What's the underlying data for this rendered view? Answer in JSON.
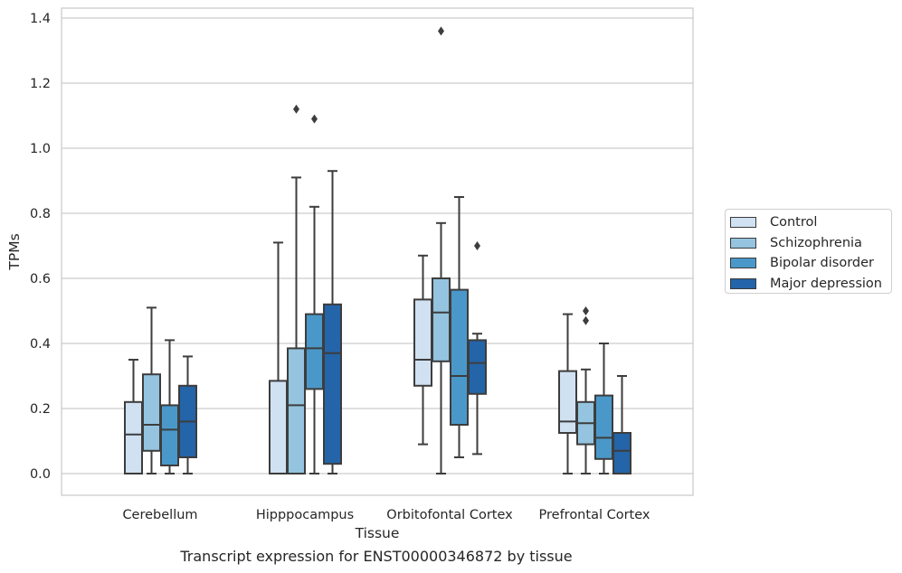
{
  "chart_data": {
    "type": "box",
    "title": "Transcript expression for ENST00000346872 by tissue",
    "xlabel": "Tissue",
    "ylabel": "TPMs",
    "ylim": [
      -0.065,
      1.435
    ],
    "yticks": [
      "0.0",
      "0.2",
      "0.4",
      "0.6",
      "0.8",
      "1.0",
      "1.2",
      "1.4"
    ],
    "categories": [
      "Cerebellum",
      "Hipppocampus",
      "Orbitofontal Cortex",
      "Prefrontal Cortex"
    ],
    "grid": true,
    "legend_position": "right",
    "series": [
      {
        "name": "Control",
        "color": "#d0e1f2",
        "boxes": [
          {
            "whislo": 0.0,
            "q1": 0.0,
            "med": 0.12,
            "q3": 0.22,
            "whishi": 0.35,
            "fliers": []
          },
          {
            "whislo": 0.0,
            "q1": 0.0,
            "med": 0.0,
            "q3": 0.285,
            "whishi": 0.71,
            "fliers": []
          },
          {
            "whislo": 0.09,
            "q1": 0.27,
            "med": 0.35,
            "q3": 0.535,
            "whishi": 0.67,
            "fliers": []
          },
          {
            "whislo": 0.0,
            "q1": 0.125,
            "med": 0.16,
            "q3": 0.315,
            "whishi": 0.49,
            "fliers": []
          }
        ]
      },
      {
        "name": "Schizophrenia",
        "color": "#94c4df",
        "boxes": [
          {
            "whislo": 0.0,
            "q1": 0.07,
            "med": 0.15,
            "q3": 0.305,
            "whishi": 0.51,
            "fliers": []
          },
          {
            "whislo": 0.0,
            "q1": 0.0,
            "med": 0.21,
            "q3": 0.385,
            "whishi": 0.91,
            "fliers": [
              1.12
            ]
          },
          {
            "whislo": 0.0,
            "q1": 0.345,
            "med": 0.495,
            "q3": 0.6,
            "whishi": 0.77,
            "fliers": [
              1.36
            ]
          },
          {
            "whislo": 0.0,
            "q1": 0.09,
            "med": 0.155,
            "q3": 0.22,
            "whishi": 0.32,
            "fliers": [
              0.47,
              0.5
            ]
          }
        ]
      },
      {
        "name": "Bipolar disorder",
        "color": "#4a98c9",
        "boxes": [
          {
            "whislo": 0.0,
            "q1": 0.025,
            "med": 0.135,
            "q3": 0.21,
            "whishi": 0.41,
            "fliers": []
          },
          {
            "whislo": 0.0,
            "q1": 0.26,
            "med": 0.385,
            "q3": 0.49,
            "whishi": 0.82,
            "fliers": [
              1.09
            ]
          },
          {
            "whislo": 0.05,
            "q1": 0.15,
            "med": 0.3,
            "q3": 0.565,
            "whishi": 0.85,
            "fliers": []
          },
          {
            "whislo": 0.0,
            "q1": 0.045,
            "med": 0.11,
            "q3": 0.24,
            "whishi": 0.4,
            "fliers": []
          }
        ]
      },
      {
        "name": "Major depression",
        "color": "#2464a8",
        "boxes": [
          {
            "whislo": 0.0,
            "q1": 0.05,
            "med": 0.16,
            "q3": 0.27,
            "whishi": 0.36,
            "fliers": []
          },
          {
            "whislo": 0.0,
            "q1": 0.03,
            "med": 0.37,
            "q3": 0.52,
            "whishi": 0.93,
            "fliers": []
          },
          {
            "whislo": 0.06,
            "q1": 0.245,
            "med": 0.34,
            "q3": 0.41,
            "whishi": 0.43,
            "fliers": [
              0.7
            ]
          },
          {
            "whislo": 0.0,
            "q1": 0.0,
            "med": 0.07,
            "q3": 0.125,
            "whishi": 0.3,
            "fliers": []
          }
        ]
      }
    ]
  }
}
